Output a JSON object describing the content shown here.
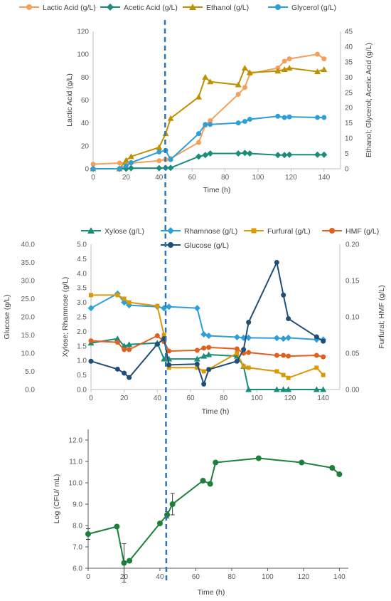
{
  "chart_data": [
    {
      "type": "line",
      "legend_position": "top",
      "xlabel": "Time (h)",
      "ylabel": "Lactic Acid (g/L)",
      "y2label": "Ethanol; Glycerol; Acetic Acid (g/L)",
      "xlim": [
        0,
        150
      ],
      "ylim": [
        0,
        120
      ],
      "y2lim": [
        0,
        45
      ],
      "xticks": [
        "0",
        "20",
        "40",
        "60",
        "80",
        "100",
        "120",
        "140"
      ],
      "yticks": [
        "0",
        "20",
        "40",
        "60",
        "80",
        "100",
        "120"
      ],
      "y2ticks": [
        "0",
        "5",
        "10",
        "15",
        "20",
        "25",
        "30",
        "35",
        "40",
        "45"
      ],
      "series": [
        {
          "name": "Lactic Acid (g/L)",
          "axis": "y",
          "color": "#F4A05A",
          "marker": "circle",
          "x": [
            0,
            16,
            20,
            23,
            40,
            44,
            47,
            64,
            68,
            71,
            88,
            92,
            95,
            112,
            116,
            119,
            136,
            140
          ],
          "y": [
            4,
            5,
            5,
            5,
            7,
            8,
            9,
            23,
            38,
            42,
            65,
            71,
            83,
            88,
            94,
            96,
            100,
            96
          ]
        },
        {
          "name": "Acetic Acid (g/L)",
          "axis": "y2",
          "color": "#1A8C7A",
          "marker": "diamond",
          "x": [
            0,
            16,
            20,
            23,
            40,
            44,
            47,
            64,
            68,
            71,
            88,
            92,
            95,
            112,
            116,
            119,
            136,
            140
          ],
          "y": [
            0,
            0,
            0,
            0.2,
            0.2,
            0.3,
            0.3,
            4,
            4.5,
            5,
            5,
            5.2,
            5,
            4.5,
            4.5,
            4.6,
            4.6,
            4.6
          ]
        },
        {
          "name": "Ethanol (g/L)",
          "axis": "y2",
          "color": "#BF9000",
          "marker": "triangle",
          "x": [
            0,
            16,
            20,
            23,
            40,
            44,
            47,
            64,
            68,
            71,
            88,
            92,
            95,
            112,
            116,
            119,
            136,
            140
          ],
          "y": [
            0,
            0,
            2.8,
            4,
            7,
            11.5,
            16.5,
            23.5,
            30,
            28.5,
            27.5,
            33,
            31.5,
            32,
            32.5,
            33,
            31.8,
            32.5
          ]
        },
        {
          "name": "Glycerol (g/L)",
          "axis": "y2",
          "color": "#2E9FD9",
          "marker": "circle",
          "x": [
            0,
            16,
            20,
            23,
            40,
            44,
            47,
            64,
            68,
            71,
            88,
            92,
            95,
            112,
            116,
            119,
            136,
            140
          ],
          "y": [
            0,
            0,
            1,
            2,
            5.5,
            6,
            3,
            11.5,
            14.5,
            14.5,
            15,
            15.5,
            16.2,
            17.2,
            16.8,
            17,
            16.8,
            16.8
          ]
        }
      ]
    },
    {
      "type": "line",
      "legend_position": "top",
      "xlabel": "Time (h)",
      "ylabel": "Glucose (g/L)",
      "ylabel_inner": "Xylose; Rhamnose (g/L)",
      "y2label": "Furfural; HMF (g/L)",
      "xlim": [
        0,
        150
      ],
      "ylim": [
        0,
        40
      ],
      "yinnerlim": [
        0,
        5
      ],
      "y2lim": [
        0,
        0.2
      ],
      "xticks": [
        "0",
        "20",
        "40",
        "60",
        "80",
        "100",
        "120",
        "140"
      ],
      "yticks": [
        "0.0",
        "5.0",
        "10.0",
        "15.0",
        "20.0",
        "25.0",
        "30.0",
        "35.0",
        "40.0"
      ],
      "yinnerticks": [
        "0.0",
        "0.5",
        "1.0",
        "1.5",
        "2.0",
        "2.5",
        "3.0",
        "3.5",
        "4.0",
        "4.5",
        "5.0"
      ],
      "y2ticks": [
        "0.00",
        "0.05",
        "0.10",
        "0.15",
        "0.20"
      ],
      "series": [
        {
          "name": "Xylose (g/L)",
          "axis": "yinner",
          "color": "#1A8C7A",
          "marker": "triangle",
          "x": [
            0,
            16,
            20,
            23,
            40,
            44,
            47,
            64,
            68,
            71,
            88,
            92,
            95,
            112,
            116,
            119,
            136,
            140
          ],
          "y": [
            1.6,
            1.75,
            1.5,
            1.55,
            1.6,
            1.05,
            1.05,
            1.05,
            1.15,
            1.2,
            1.15,
            0.8,
            0,
            0,
            0,
            0,
            0,
            0
          ]
        },
        {
          "name": "Rhamnose (g/L)",
          "axis": "yinner",
          "color": "#2E9FD9",
          "marker": "diamond",
          "x": [
            0,
            16,
            20,
            23,
            40,
            44,
            47,
            64,
            68,
            71,
            88,
            92,
            95,
            112,
            116,
            119,
            136,
            140
          ],
          "y": [
            2.8,
            3.3,
            3.0,
            2.9,
            2.85,
            2.8,
            2.85,
            2.8,
            1.9,
            1.85,
            1.8,
            1.78,
            1.78,
            1.77,
            1.75,
            1.78,
            1.72,
            1.72
          ]
        },
        {
          "name": "Furfural (g/L)",
          "axis": "y2",
          "color": "#D99A06",
          "marker": "square",
          "x": [
            0,
            16,
            20,
            23,
            40,
            44,
            47,
            64,
            68,
            71,
            88,
            92,
            95,
            112,
            116,
            119,
            136,
            140
          ],
          "y": [
            0.13,
            0.13,
            0.125,
            0.12,
            0.115,
            0.075,
            0.03,
            0.03,
            0.025,
            0.028,
            0.05,
            0.032,
            0.03,
            0.025,
            0.02,
            0.016,
            0.03,
            0.02
          ]
        },
        {
          "name": "HMF (g/L)",
          "axis": "y2",
          "color": "#E06020",
          "marker": "circle",
          "x": [
            0,
            16,
            20,
            23,
            40,
            44,
            47,
            64,
            68,
            71,
            88,
            92,
            95,
            112,
            116,
            119,
            136,
            140
          ],
          "y": [
            0.067,
            0.065,
            0.055,
            0.055,
            0.074,
            0.066,
            0.053,
            0.054,
            0.057,
            0.058,
            0.056,
            0.05,
            0.051,
            0.047,
            0.047,
            0.046,
            0.047,
            0.045
          ]
        },
        {
          "name": "Glucose (g/L)",
          "axis": "y",
          "color": "#1F4E79",
          "marker": "circle",
          "x": [
            0,
            16,
            20,
            23,
            40,
            44,
            47,
            64,
            68,
            71,
            88,
            92,
            95,
            112,
            116,
            119,
            136,
            140
          ],
          "y": [
            7.8,
            5.6,
            4.5,
            3.3,
            12.5,
            14,
            6.8,
            7,
            1.5,
            5.5,
            7.8,
            11,
            18.5,
            35,
            26,
            19.5,
            14.5,
            13.3
          ]
        }
      ]
    },
    {
      "type": "line",
      "xlabel": "Time (h)",
      "ylabel": "Log (CFU/ mL)",
      "xlim": [
        0,
        145
      ],
      "ylim": [
        6.0,
        12.5
      ],
      "xticks": [
        "0",
        "20",
        "40",
        "60",
        "80",
        "100",
        "120",
        "140"
      ],
      "yticks": [
        "6.0",
        "7.0",
        "8.0",
        "9.0",
        "10.0",
        "11.0",
        "12.0"
      ],
      "series": [
        {
          "name": "",
          "color": "#1E7F3A",
          "marker": "circle",
          "x": [
            0,
            16,
            20,
            23,
            40,
            44,
            47,
            64,
            68,
            71,
            95,
            119,
            136,
            140
          ],
          "y": [
            7.6,
            7.95,
            6.25,
            6.35,
            8.1,
            8.5,
            9.0,
            10.1,
            9.95,
            10.95,
            11.15,
            10.95,
            10.7,
            10.4
          ],
          "error": [
            0.25,
            0,
            0.9,
            0,
            0,
            0.15,
            0.5,
            0,
            0,
            0,
            0,
            0,
            0,
            0
          ]
        }
      ]
    }
  ]
}
